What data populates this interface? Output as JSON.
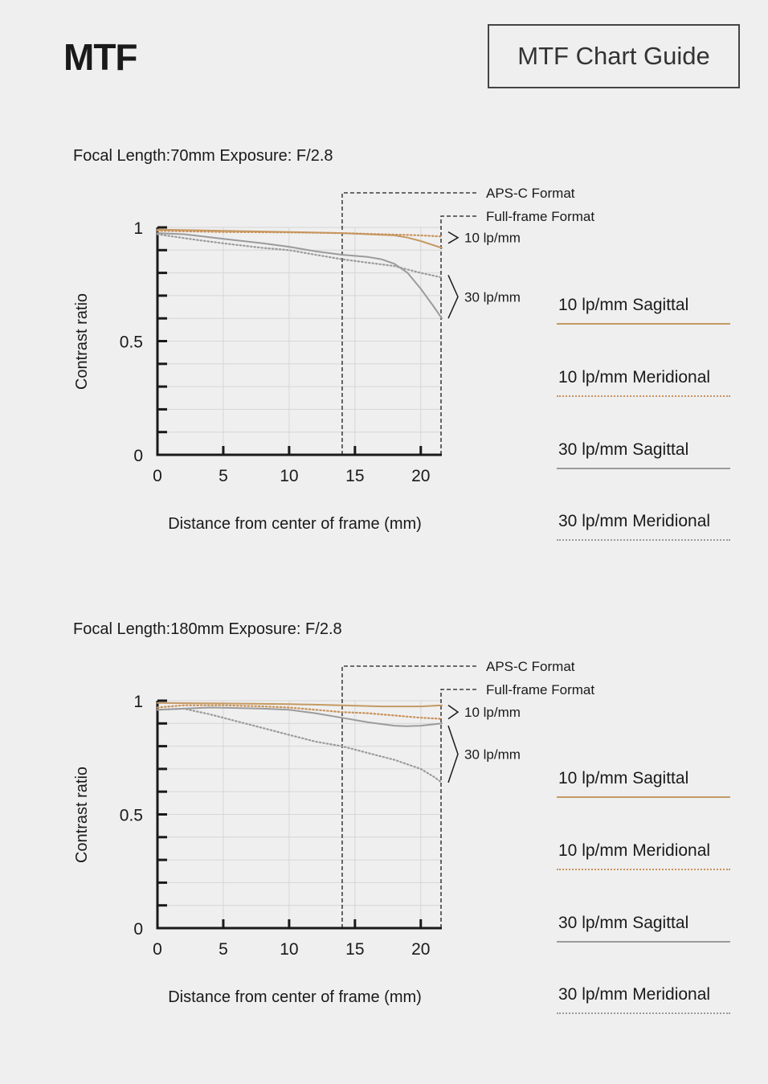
{
  "header": {
    "title": "MTF",
    "guide_button_label": "MTF Chart Guide"
  },
  "colors": {
    "sagittal_10": "#c49a63",
    "meridional_10": "#c9925a",
    "sagittal_30": "#9b9b9b",
    "meridional_30": "#9b9b9b",
    "axis": "#1a1a1a",
    "grid": "#d6d6d6"
  },
  "legend": [
    {
      "label": "10 lp/mm Sagittal",
      "style": "solid",
      "color": "#c49a63"
    },
    {
      "label": "10 lp/mm Meridional",
      "style": "dotted",
      "color": "#c9925a"
    },
    {
      "label": "30 lp/mm Sagittal",
      "style": "solid",
      "color": "#9b9b9b"
    },
    {
      "label": "30 lp/mm Meridional",
      "style": "dotted",
      "color": "#9b9b9b"
    }
  ],
  "chart_data": [
    {
      "type": "line",
      "heading": "Focal Length:70mm    Exposure: F/2.8",
      "xlabel": "Distance from center of frame (mm)",
      "ylabel": "Contrast ratio",
      "xlim": [
        0,
        21.6
      ],
      "ylim": [
        0,
        1
      ],
      "xticks": [
        "0",
        "5",
        "10",
        "15",
        "20"
      ],
      "yticks": [
        "0",
        "0.5",
        "1"
      ],
      "format_lines": [
        {
          "label": "APS-C Format",
          "x": 14
        },
        {
          "label": "Full-frame Format",
          "x": 21.6
        }
      ],
      "group_labels": [
        {
          "label": "10 lp/mm",
          "y_range": [
            0.93,
            0.98
          ]
        },
        {
          "label": "30 lp/mm",
          "y_range": [
            0.6,
            0.79
          ]
        }
      ],
      "series": [
        {
          "name": "10 lp/mm Sagittal",
          "style": "solid",
          "color": "#c49a63",
          "x": [
            0,
            5,
            10,
            14,
            16,
            18,
            19,
            20,
            21.6
          ],
          "y": [
            0.99,
            0.985,
            0.98,
            0.975,
            0.97,
            0.965,
            0.955,
            0.94,
            0.91
          ]
        },
        {
          "name": "10 lp/mm Meridional",
          "style": "dotted",
          "color": "#c9925a",
          "x": [
            0,
            5,
            10,
            14,
            17,
            20,
            21.6
          ],
          "y": [
            0.985,
            0.98,
            0.978,
            0.975,
            0.97,
            0.965,
            0.96
          ]
        },
        {
          "name": "30 lp/mm Sagittal",
          "style": "solid",
          "color": "#9b9b9b",
          "x": [
            0,
            2,
            5,
            8,
            10,
            12,
            14,
            15,
            16,
            17,
            18,
            19,
            20,
            21,
            21.6
          ],
          "y": [
            0.975,
            0.97,
            0.95,
            0.93,
            0.915,
            0.895,
            0.88,
            0.875,
            0.87,
            0.86,
            0.84,
            0.8,
            0.73,
            0.65,
            0.6
          ]
        },
        {
          "name": "30 lp/mm Meridional",
          "style": "dotted",
          "color": "#9b9b9b",
          "x": [
            0,
            3,
            5,
            8,
            10,
            12,
            14,
            16,
            18,
            19,
            20,
            21.6
          ],
          "y": [
            0.97,
            0.945,
            0.93,
            0.91,
            0.9,
            0.88,
            0.86,
            0.845,
            0.83,
            0.815,
            0.8,
            0.78
          ]
        }
      ]
    },
    {
      "type": "line",
      "heading": "Focal Length:180mm  Exposure: F/2.8",
      "xlabel": "Distance from center of frame (mm)",
      "ylabel": "Contrast ratio",
      "xlim": [
        0,
        21.6
      ],
      "ylim": [
        0,
        1
      ],
      "xticks": [
        "0",
        "5",
        "10",
        "15",
        "20"
      ],
      "yticks": [
        "0",
        "0.5",
        "1"
      ],
      "format_lines": [
        {
          "label": "APS-C Format",
          "x": 14
        },
        {
          "label": "Full-frame Format",
          "x": 21.6
        }
      ],
      "group_labels": [
        {
          "label": "10 lp/mm",
          "y_range": [
            0.92,
            0.98
          ]
        },
        {
          "label": "30 lp/mm",
          "y_range": [
            0.64,
            0.89
          ]
        }
      ],
      "series": [
        {
          "name": "10 lp/mm Sagittal",
          "style": "solid",
          "color": "#c49a63",
          "x": [
            0,
            5,
            10,
            14,
            17,
            20,
            21.6
          ],
          "y": [
            0.99,
            0.988,
            0.985,
            0.98,
            0.975,
            0.975,
            0.98
          ]
        },
        {
          "name": "10 lp/mm Meridional",
          "style": "dotted",
          "color": "#c9925a",
          "x": [
            0,
            2,
            5,
            8,
            10,
            12,
            14,
            16,
            18,
            20,
            21.6
          ],
          "y": [
            0.97,
            0.98,
            0.98,
            0.975,
            0.97,
            0.96,
            0.95,
            0.945,
            0.935,
            0.925,
            0.92
          ]
        },
        {
          "name": "30 lp/mm Sagittal",
          "style": "solid",
          "color": "#9b9b9b",
          "x": [
            0,
            2,
            4,
            6,
            8,
            10,
            12,
            14,
            16,
            18,
            19,
            20,
            21.6
          ],
          "y": [
            0.96,
            0.965,
            0.97,
            0.968,
            0.965,
            0.96,
            0.945,
            0.925,
            0.905,
            0.89,
            0.888,
            0.89,
            0.9
          ]
        },
        {
          "name": "30 lp/mm Meridional",
          "style": "dotted",
          "color": "#9b9b9b",
          "x": [
            0,
            2,
            4,
            6,
            8,
            10,
            12,
            14,
            16,
            18,
            20,
            21,
            21.6
          ],
          "y": [
            0.96,
            0.965,
            0.94,
            0.91,
            0.88,
            0.85,
            0.82,
            0.8,
            0.77,
            0.74,
            0.7,
            0.665,
            0.64
          ]
        }
      ]
    }
  ]
}
